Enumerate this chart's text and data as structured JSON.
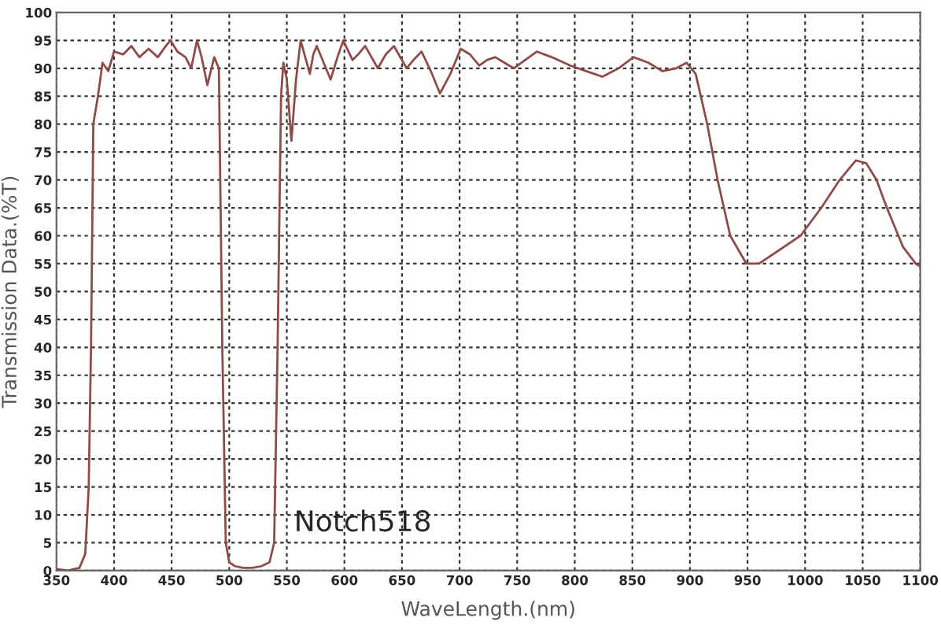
{
  "chart_data": {
    "type": "line",
    "xlabel": "WaveLength.(nm)",
    "ylabel": "Transmission Data.(%T)",
    "x": [
      350,
      360,
      370,
      375,
      378,
      380,
      382,
      386,
      390,
      395,
      400,
      408,
      415,
      422,
      430,
      438,
      445,
      449,
      455,
      462,
      467,
      472,
      476,
      481,
      487,
      491,
      494,
      497,
      500,
      505,
      512,
      520,
      528,
      535,
      539,
      542,
      545,
      547,
      550,
      554,
      558,
      562,
      566,
      570,
      573,
      576,
      579,
      582,
      588,
      594,
      599,
      607,
      612,
      618,
      629,
      636,
      643,
      654,
      660,
      667,
      675,
      683,
      692,
      701,
      709,
      717,
      724,
      731,
      739,
      747,
      757,
      767,
      780,
      796,
      810,
      824,
      838,
      851,
      864,
      876,
      888,
      897,
      905,
      915,
      924,
      935,
      949,
      960,
      978,
      996,
      1014,
      1030,
      1044,
      1053,
      1062,
      1071,
      1085,
      1096,
      1100
    ],
    "series": [
      {
        "color": "#8e4b48",
        "values": [
          0.3,
          0,
          0.5,
          3,
          15,
          40,
          80,
          85,
          91,
          89.5,
          93,
          92.5,
          94,
          92,
          93.5,
          92,
          94,
          95,
          93,
          92,
          90,
          95,
          92,
          87,
          92,
          90,
          40,
          5,
          1.5,
          0.8,
          0.5,
          0.5,
          0.8,
          1.5,
          5,
          40,
          85,
          91,
          88,
          77,
          88,
          95,
          92,
          89,
          92.5,
          94,
          92.5,
          91,
          88,
          92,
          95,
          91.5,
          92.5,
          94,
          90,
          92.5,
          94,
          90,
          91.5,
          93,
          89.5,
          85.5,
          89,
          93.5,
          92.5,
          90.5,
          91.5,
          92,
          91,
          90,
          91.5,
          93,
          92,
          90.5,
          89.5,
          88.5,
          90,
          92,
          91,
          89.5,
          90,
          91,
          89,
          80,
          70,
          60,
          55,
          55,
          57.5,
          60,
          65,
          70,
          73.5,
          73,
          70,
          65,
          58,
          55,
          54.5
        ]
      }
    ],
    "xlim": [
      350,
      1100
    ],
    "ylim": [
      0,
      100
    ],
    "xticks": [
      350,
      400,
      450,
      500,
      550,
      600,
      650,
      700,
      750,
      800,
      850,
      900,
      950,
      1000,
      1050,
      1100
    ],
    "yticks": [
      0,
      5,
      10,
      15,
      20,
      25,
      30,
      35,
      40,
      45,
      50,
      55,
      60,
      65,
      70,
      75,
      80,
      85,
      90,
      95,
      100
    ],
    "grid": true,
    "line_style": "solid",
    "marker": "none",
    "annotations": [
      "Notch518"
    ]
  }
}
